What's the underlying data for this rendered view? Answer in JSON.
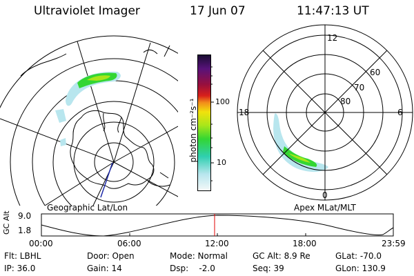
{
  "header": {
    "title": "Ultraviolet Imager",
    "date": "17 Jun 07",
    "time": "11:47:13 UT"
  },
  "left_panel": {
    "caption": "Geographic Lat/Lon"
  },
  "right_panel": {
    "caption": "Apex MLat/MLT",
    "mlt_labels": {
      "top": "12",
      "bottom": "0",
      "left": "18",
      "right": "6"
    },
    "lat_labels": [
      "60",
      "70",
      "80"
    ]
  },
  "colorbar": {
    "unit_label": "photon cm⁻²s⁻¹",
    "tick_labels": [
      "100",
      "10"
    ],
    "colors": [
      "#1a0d33",
      "#58127a",
      "#9a0f3c",
      "#d8201a",
      "#f28c1a",
      "#f1e20d",
      "#a8e61a",
      "#33d633",
      "#2fcfb0",
      "#b8e6ee",
      "#f4f8f8"
    ]
  },
  "orbit_plot": {
    "ylabel": "GC Alt",
    "y_ticks": [
      "9.0",
      "1.8"
    ],
    "x_ticks": [
      "00:00",
      "06:00",
      "12:00",
      "18:00",
      "23:59"
    ],
    "marker_color": "#e00000"
  },
  "footer": {
    "row1": {
      "filter": "Flt: LBHL",
      "door": "Door: Open",
      "mode": "Mode: Normal",
      "gc_alt": "GC Alt: 8.9 Re",
      "glat": "GLat: -70.0"
    },
    "row2": {
      "ip": "IP: 36.0",
      "gain": "Gain: 14",
      "dsp": "Dsp:    -2.0",
      "seq": "Seq: 39",
      "glon": "GLon: 130.9"
    }
  }
}
